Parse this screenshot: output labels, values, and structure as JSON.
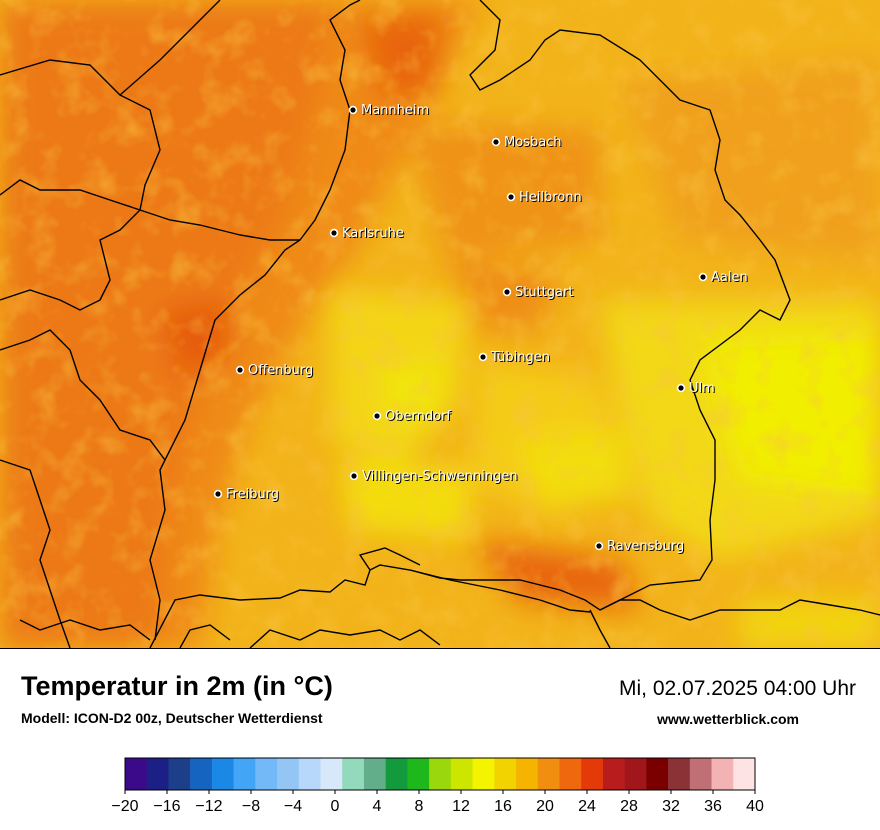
{
  "title": "Temperatur in 2m (in °C)",
  "subtitle": "Modell: ICON-D2 00z, Deutscher Wetterdienst",
  "datetime": "Mi, 02.07.2025 04:00 Uhr",
  "website": "www.wetterblick.com",
  "cities": [
    {
      "name": "Mannheim"
    },
    {
      "name": "Mosbach"
    },
    {
      "name": "Heilbronn"
    },
    {
      "name": "Karlsruhe"
    },
    {
      "name": "Aalen"
    },
    {
      "name": "Stuttgart"
    },
    {
      "name": "Tübingen"
    },
    {
      "name": "Offenburg"
    },
    {
      "name": "Ulm"
    },
    {
      "name": "Oberndorf"
    },
    {
      "name": "Villingen-Schwenningen"
    },
    {
      "name": "Freiburg"
    },
    {
      "name": "Ravensburg"
    }
  ],
  "colorbar": {
    "ticks": [
      "−20",
      "−16",
      "−12",
      "−8",
      "−4",
      "0",
      "4",
      "8",
      "12",
      "16",
      "20",
      "24",
      "28",
      "32",
      "36",
      "40"
    ],
    "colors": [
      "#3b0a8a",
      "#1b1f86",
      "#1d3f8a",
      "#1565c0",
      "#1b88e6",
      "#42a5f5",
      "#74b9f7",
      "#93c6f5",
      "#b7d8fa",
      "#d7e8fb",
      "#93d9bc",
      "#62ad8a",
      "#139a3c",
      "#1fb81c",
      "#9ad80d",
      "#cde600",
      "#f4f400",
      "#f2d300",
      "#f5b400",
      "#f28e0f",
      "#f0680d",
      "#e43a0a",
      "#b81c1c",
      "#a0161a",
      "#7a0000",
      "#8b3236",
      "#c07075",
      "#f3b2b4",
      "#fde3e4"
    ]
  },
  "map_colors": {
    "base": "#f0a41d",
    "warm": "#ef8716",
    "hot": "#e86a10",
    "cool": "#f4cf12",
    "coolest": "#f0f000",
    "border": "#000000"
  }
}
